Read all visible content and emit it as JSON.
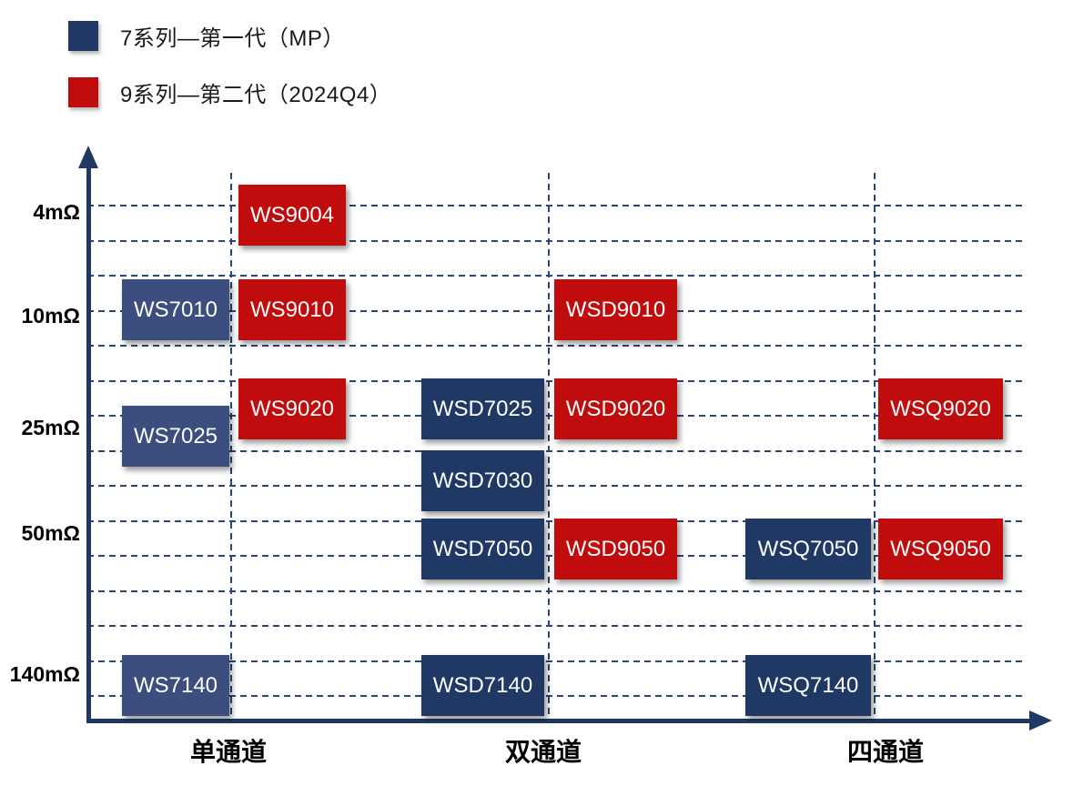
{
  "legend": {
    "items": [
      {
        "label": "7系列—第一代（MP）",
        "color": "#1F3864"
      },
      {
        "label": "9系列—第二代（2024Q4）",
        "color": "#C00C0C"
      }
    ]
  },
  "axes": {
    "y_labels": [
      "4mΩ",
      "10mΩ",
      "25mΩ",
      "50mΩ",
      "140mΩ"
    ],
    "x_labels": [
      "单通道",
      "双通道",
      "四通道"
    ]
  },
  "colors": {
    "axis": "#1F3864",
    "gridline": "#2B4576",
    "gen1": "#1F3864",
    "gen1_single": "#3B4E7E",
    "gen2": "#C00C0C",
    "box_text": "#FFFFFF"
  },
  "chart_data": {
    "type": "scatter",
    "title": "",
    "x_categories": [
      "单通道",
      "双通道",
      "四通道"
    ],
    "y_axis": {
      "unit": "mΩ",
      "tick_labels": [
        "4mΩ",
        "10mΩ",
        "25mΩ",
        "50mΩ",
        "140mΩ"
      ],
      "direction": "resistance increases downward"
    },
    "series": [
      {
        "name": "7系列—第一代（MP）",
        "color": "#1F3864"
      },
      {
        "name": "9系列—第二代（2024Q4）",
        "color": "#C00C0C"
      }
    ],
    "products": [
      {
        "label": "WS9004",
        "series": "9",
        "channel": "single",
        "resistance_mohm": 4
      },
      {
        "label": "WS7010",
        "series": "7",
        "channel": "single",
        "resistance_mohm": 10
      },
      {
        "label": "WS9010",
        "series": "9",
        "channel": "single",
        "resistance_mohm": 10
      },
      {
        "label": "WSD9010",
        "series": "9",
        "channel": "dual",
        "resistance_mohm": 10
      },
      {
        "label": "WS7025",
        "series": "7",
        "channel": "single",
        "resistance_mohm": 25
      },
      {
        "label": "WS9020",
        "series": "9",
        "channel": "single",
        "resistance_mohm": 20
      },
      {
        "label": "WSD7025",
        "series": "7",
        "channel": "dual",
        "resistance_mohm": 25
      },
      {
        "label": "WSD9020",
        "series": "9",
        "channel": "dual",
        "resistance_mohm": 20
      },
      {
        "label": "WSQ9020",
        "series": "9",
        "channel": "quad",
        "resistance_mohm": 20
      },
      {
        "label": "WSD7030",
        "series": "7",
        "channel": "dual",
        "resistance_mohm": 30
      },
      {
        "label": "WSD7050",
        "series": "7",
        "channel": "dual",
        "resistance_mohm": 50
      },
      {
        "label": "WSD9050",
        "series": "9",
        "channel": "dual",
        "resistance_mohm": 50
      },
      {
        "label": "WSQ7050",
        "series": "7",
        "channel": "quad",
        "resistance_mohm": 50
      },
      {
        "label": "WSQ9050",
        "series": "9",
        "channel": "quad",
        "resistance_mohm": 50
      },
      {
        "label": "WS7140",
        "series": "7",
        "channel": "single",
        "resistance_mohm": 140
      },
      {
        "label": "WSD7140",
        "series": "7",
        "channel": "dual",
        "resistance_mohm": 140
      },
      {
        "label": "WSQ7140",
        "series": "7",
        "channel": "quad",
        "resistance_mohm": 140
      }
    ]
  }
}
